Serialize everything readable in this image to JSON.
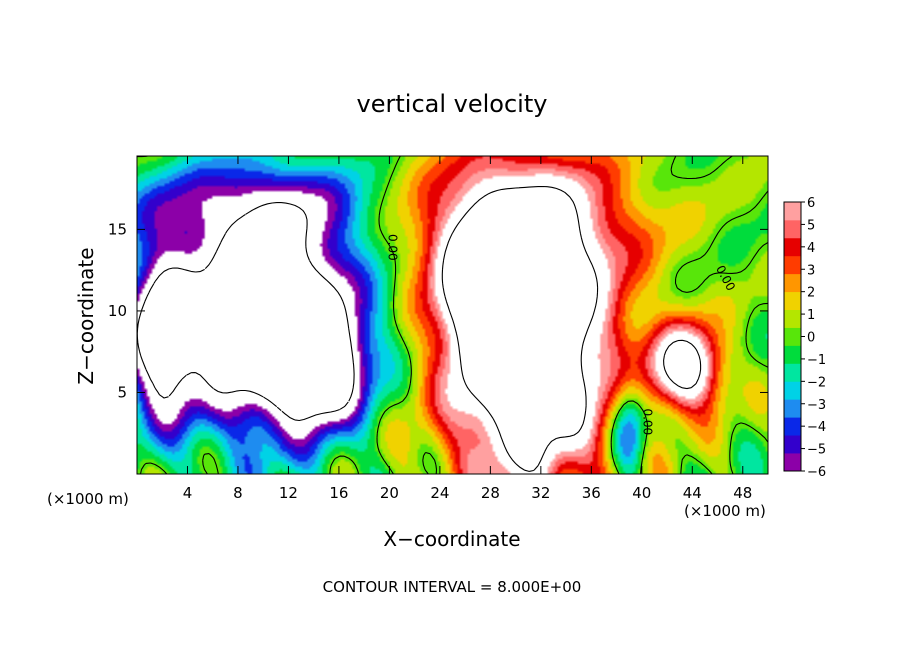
{
  "chart_data": {
    "type": "heatmap",
    "title": "vertical velocity",
    "xlabel": "X−coordinate",
    "ylabel": "Z−coordinate",
    "x_unit_left": "(×1000 m)",
    "x_unit_right": "(×1000 m)",
    "footer": "CONTOUR INTERVAL = 8.000E+00",
    "xlim": [
      0,
      50
    ],
    "ylim": [
      0,
      19.5
    ],
    "x_ticks": [
      4,
      8,
      12,
      16,
      20,
      24,
      28,
      32,
      36,
      40,
      44,
      48
    ],
    "x_tick_labels": [
      "4",
      "8",
      "12",
      "16",
      "20",
      "24",
      "28",
      "32",
      "36",
      "40",
      "44",
      "48"
    ],
    "y_ticks": [
      5,
      10,
      15
    ],
    "y_tick_labels": [
      "5",
      "10",
      "15"
    ],
    "colorbar": {
      "min": -6,
      "max": 6,
      "ticks": [
        6,
        5,
        4,
        3,
        2,
        1,
        0,
        -1,
        -2,
        -3,
        -4,
        -5,
        -6
      ],
      "tick_labels": [
        "6",
        "5",
        "4",
        "3",
        "2",
        "1",
        "0",
        "−1",
        "−2",
        "−3",
        "−4",
        "−5",
        "−6"
      ],
      "colors": [
        "#8c00a8",
        "#3300cc",
        "#0a28e8",
        "#1e8cf0",
        "#00d2e6",
        "#00e6a0",
        "#00dc3c",
        "#58e60a",
        "#b4e600",
        "#f0d200",
        "#ff9600",
        "#ff3c00",
        "#e60000",
        "#ff6464",
        "#ffa0a0"
      ]
    },
    "contour_labels": [
      {
        "text": "0.00",
        "x": 20.2,
        "y": 13.9,
        "rotate": 90
      },
      {
        "text": "0.00",
        "x": 46.6,
        "y": 12.0,
        "rotate": 62
      },
      {
        "text": "0.00",
        "x": 40.4,
        "y": 3.2,
        "rotate": 90
      }
    ],
    "features": [
      {
        "kind": "updraft",
        "cx": 31.0,
        "cz": 8.0,
        "rx": 6.5,
        "rz": 9.0,
        "amp": 14
      },
      {
        "kind": "updraft",
        "cx": 28.5,
        "cz": 11.5,
        "rx": 3.5,
        "rz": 4.0,
        "amp": 10
      },
      {
        "kind": "updraft",
        "cx": 43.5,
        "cz": 6.5,
        "rx": 2.8,
        "rz": 2.6,
        "amp": 10
      },
      {
        "kind": "updraft",
        "cx": 29.5,
        "cz": 15.5,
        "rx": 10.0,
        "rz": 4.0,
        "amp": 4.5
      },
      {
        "kind": "downdraft",
        "cx": 10.5,
        "cz": 9.5,
        "rx": 7.0,
        "rz": 6.5,
        "amp": -14
      },
      {
        "kind": "downdraft",
        "cx": 2.0,
        "cz": 8.5,
        "rx": 2.5,
        "rz": 5.0,
        "amp": -10
      },
      {
        "kind": "downdraft",
        "cx": 14.5,
        "cz": 6.5,
        "rx": 3.0,
        "rz": 3.0,
        "amp": -9
      },
      {
        "kind": "downdraft",
        "cx": 9.0,
        "cz": 16.5,
        "rx": 11.0,
        "rz": 2.5,
        "amp": -4
      },
      {
        "kind": "downdraft",
        "cx": 39.0,
        "cz": 3.0,
        "rx": 1.4,
        "rz": 3.0,
        "amp": -5
      }
    ]
  }
}
